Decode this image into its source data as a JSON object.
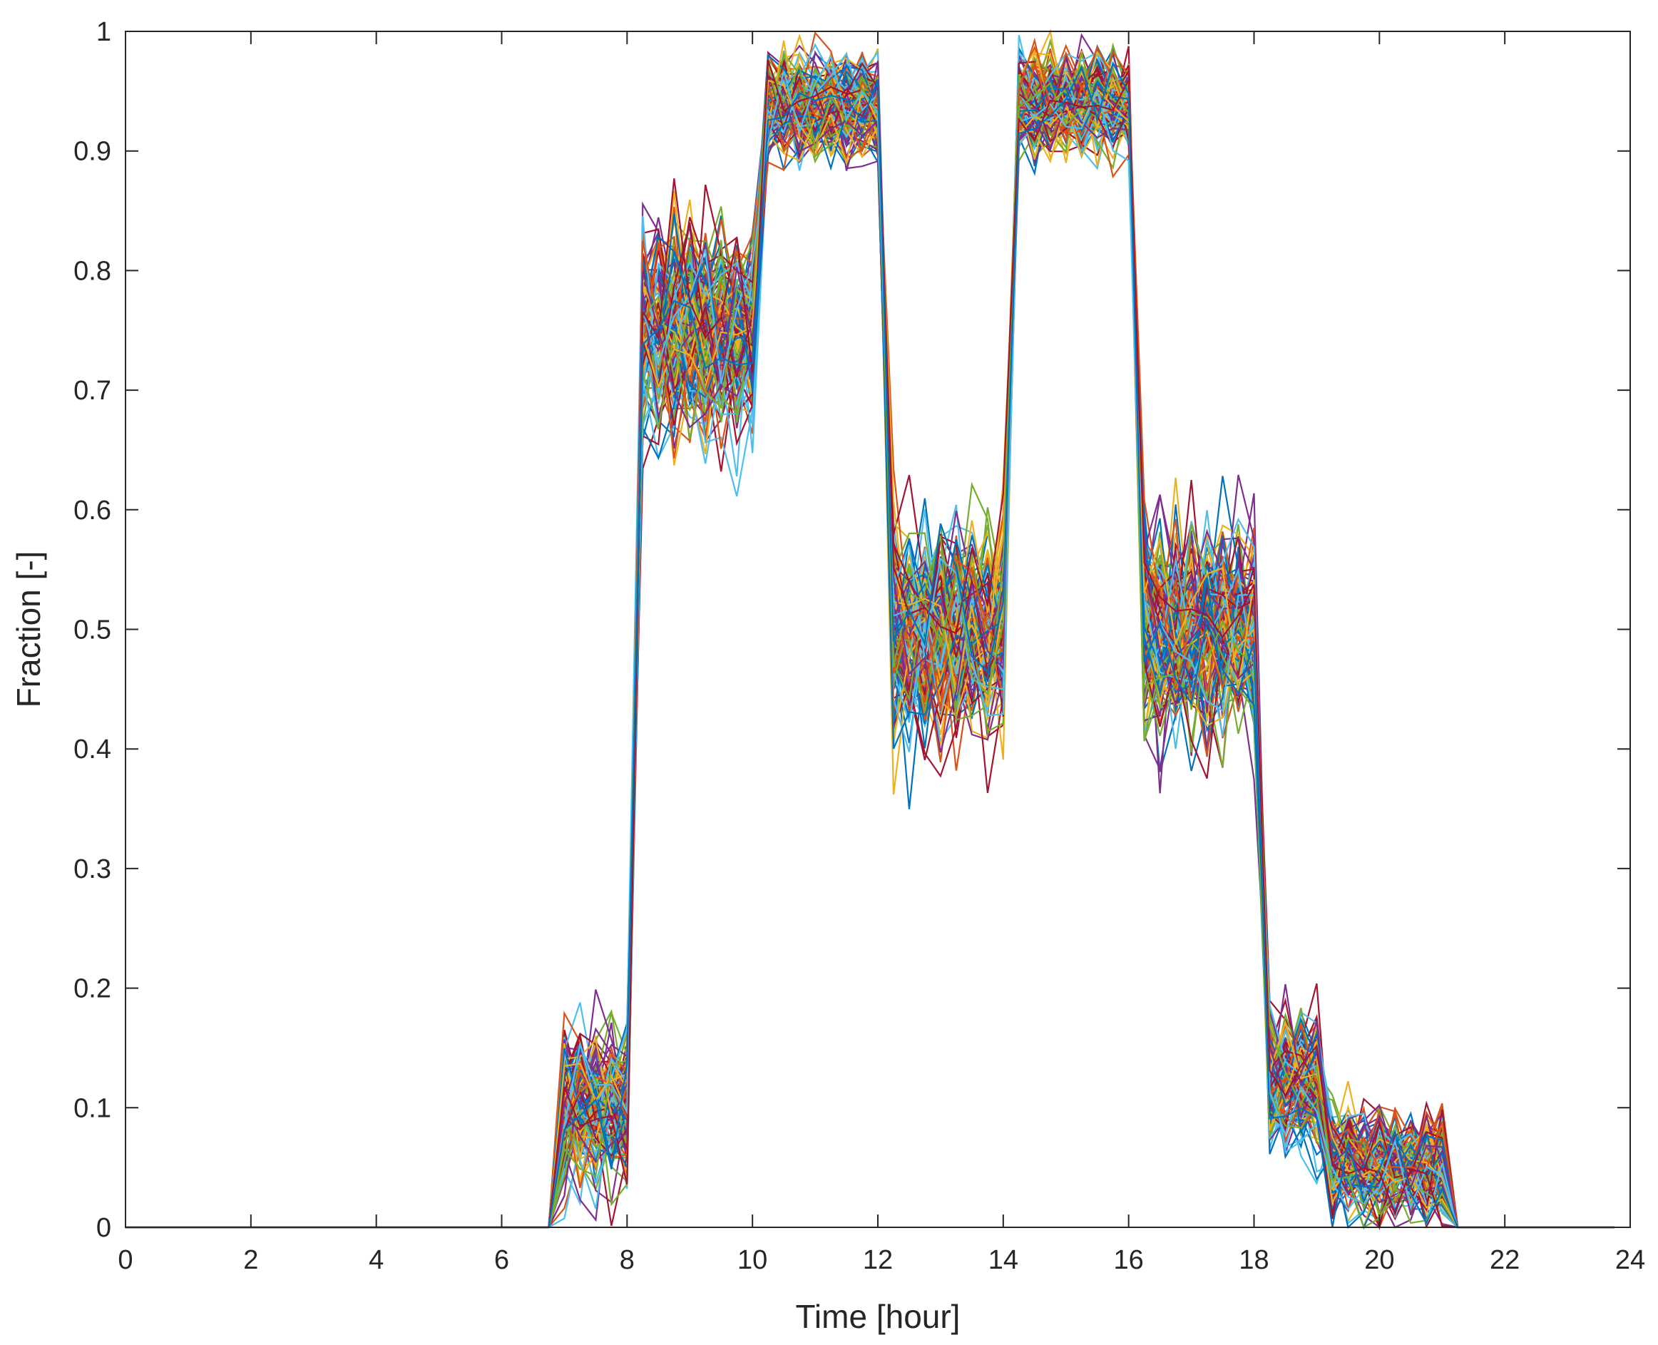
{
  "chart_data": {
    "type": "line",
    "title": "",
    "xlabel": "Time [hour]",
    "ylabel": "Fraction [-]",
    "xlim": [
      0,
      24
    ],
    "ylim": [
      0,
      1
    ],
    "xticks": [
      0,
      2,
      4,
      6,
      8,
      10,
      12,
      14,
      16,
      18,
      20,
      22,
      24
    ],
    "yticks": [
      0,
      0.1,
      0.2,
      0.3,
      0.4,
      0.5,
      0.6,
      0.7,
      0.8,
      0.9,
      1
    ],
    "ytick_labels": [
      "0",
      "0.1",
      "0.2",
      "0.3",
      "0.4",
      "0.5",
      "0.6",
      "0.7",
      "0.8",
      "0.9",
      "1"
    ],
    "grid": false,
    "legend": "none",
    "series_count": 120,
    "colors": [
      "#0072BD",
      "#D95319",
      "#EDB120",
      "#7E2F8E",
      "#77AC30",
      "#4DBEEE",
      "#A2142F"
    ],
    "x": [
      0,
      0.25,
      0.5,
      0.75,
      1,
      1.25,
      1.5,
      1.75,
      2,
      2.25,
      2.5,
      2.75,
      3,
      3.25,
      3.5,
      3.75,
      4,
      4.25,
      4.5,
      4.75,
      5,
      5.25,
      5.5,
      5.75,
      6,
      6.25,
      6.5,
      6.75,
      7,
      7.25,
      7.5,
      7.75,
      8,
      8.25,
      8.5,
      8.75,
      9,
      9.25,
      9.5,
      9.75,
      10,
      10.25,
      10.5,
      10.75,
      11,
      11.25,
      11.5,
      11.75,
      12,
      12.25,
      12.5,
      12.75,
      13,
      13.25,
      13.5,
      13.75,
      14,
      14.25,
      14.5,
      14.75,
      15,
      15.25,
      15.5,
      15.75,
      16,
      16.25,
      16.5,
      16.75,
      17,
      17.25,
      17.5,
      17.75,
      18,
      18.25,
      18.5,
      18.75,
      19,
      19.25,
      19.5,
      19.75,
      20,
      20.25,
      20.5,
      20.75,
      21,
      21.25,
      21.5,
      21.75,
      22,
      22.25,
      22.5,
      22.75,
      23,
      23.25,
      23.5,
      23.75
    ],
    "profile": {
      "description_free": true,
      "segments": [
        {
          "from": 0,
          "to": 6.75,
          "mean": 0,
          "spread": 0
        },
        {
          "from": 7,
          "to": 8,
          "mean": 0.1,
          "spread": 0.06
        },
        {
          "from": 8.25,
          "to": 10,
          "mean": 0.75,
          "spread": 0.08
        },
        {
          "from": 10.25,
          "to": 12,
          "mean": 0.94,
          "spread": 0.04
        },
        {
          "from": 12.25,
          "to": 14,
          "mean": 0.5,
          "spread": 0.08
        },
        {
          "from": 14.25,
          "to": 16,
          "mean": 0.94,
          "spread": 0.04
        },
        {
          "from": 16.25,
          "to": 18,
          "mean": 0.5,
          "spread": 0.08
        },
        {
          "from": 18.25,
          "to": 19,
          "mean": 0.12,
          "spread": 0.05
        },
        {
          "from": 19.25,
          "to": 21,
          "mean": 0.05,
          "spread": 0.04
        },
        {
          "from": 21.25,
          "to": 23.75,
          "mean": 0,
          "spread": 0
        }
      ]
    }
  }
}
